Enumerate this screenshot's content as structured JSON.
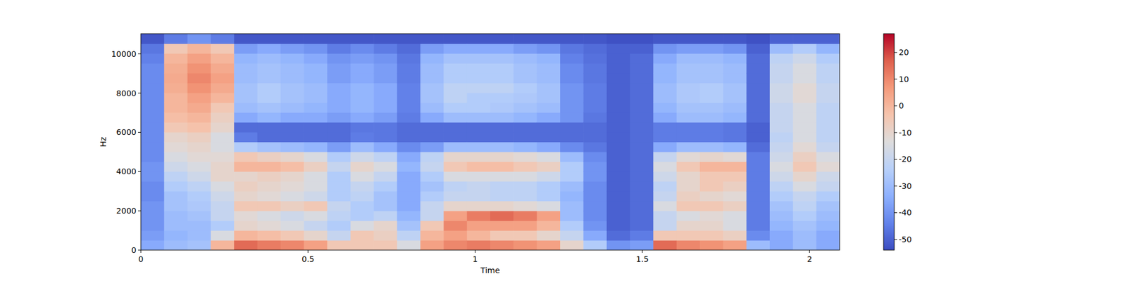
{
  "chart_data": {
    "type": "heatmap",
    "x_label": "Time",
    "y_label": "Hz",
    "xlim": [
      0,
      2.09
    ],
    "ylim": [
      0,
      11025
    ],
    "xticks": [
      0,
      0.5,
      1,
      1.5,
      2
    ],
    "yticks": [
      0,
      2000,
      4000,
      6000,
      8000,
      10000
    ],
    "clim": [
      -54,
      27
    ],
    "cticks": [
      -50,
      -40,
      -30,
      -20,
      -10,
      0,
      10,
      20
    ],
    "z": [
      [
        -35,
        -38,
        -40,
        -40,
        -40,
        -42,
        -42,
        -40,
        -40,
        -42,
        -42,
        -42,
        -42,
        -42,
        -42,
        -42,
        -42,
        -42,
        -42,
        -44,
        -46,
        -52
      ],
      [
        -30,
        -32,
        -30,
        -30,
        -28,
        -28,
        -25,
        -22,
        -18,
        -15,
        -12,
        -10,
        -5,
        -2,
        0,
        0,
        2,
        3,
        2,
        0,
        -5,
        -45
      ],
      [
        -28,
        -30,
        -30,
        -28,
        -26,
        -25,
        -22,
        -18,
        -15,
        -12,
        -10,
        -8,
        -3,
        0,
        3,
        5,
        8,
        10,
        8,
        5,
        0,
        -40
      ],
      [
        0,
        -15,
        -25,
        -20,
        -20,
        -18,
        -15,
        -10,
        -10,
        -12,
        -15,
        -15,
        -10,
        -8,
        -5,
        0,
        3,
        5,
        3,
        0,
        -5,
        -45
      ],
      [
        15,
        0,
        -10,
        -12,
        -5,
        -10,
        -8,
        -10,
        0,
        -5,
        -25,
        -45,
        -48,
        -35,
        -30,
        -28,
        -28,
        -30,
        -30,
        -32,
        -38,
        -52
      ],
      [
        12,
        -2,
        -12,
        -15,
        -5,
        -12,
        -10,
        -8,
        0,
        -8,
        -28,
        -48,
        -48,
        -32,
        -28,
        -25,
        -25,
        -28,
        -28,
        -30,
        -35,
        -52
      ],
      [
        10,
        -5,
        -15,
        -18,
        -8,
        -15,
        -12,
        -10,
        -2,
        -10,
        -30,
        -48,
        -48,
        -35,
        -30,
        -28,
        -28,
        -30,
        -30,
        -32,
        -38,
        -52
      ],
      [
        5,
        -10,
        -20,
        -15,
        -5,
        -18,
        -15,
        -15,
        -8,
        -15,
        -32,
        -48,
        -48,
        -35,
        -32,
        -30,
        -30,
        -32,
        -32,
        -35,
        -40,
        -52
      ],
      [
        -5,
        -20,
        -25,
        -22,
        -20,
        -25,
        -25,
        -25,
        -20,
        -25,
        -38,
        -48,
        -48,
        -38,
        -35,
        -35,
        -35,
        -38,
        -38,
        -40,
        -45,
        -52
      ],
      [
        -5,
        -5,
        -15,
        -25,
        -25,
        -22,
        -20,
        -15,
        -10,
        -18,
        -30,
        -45,
        -46,
        -35,
        -32,
        -32,
        -32,
        -35,
        -35,
        -38,
        -42,
        -52
      ],
      [
        -5,
        -8,
        -10,
        -22,
        -28,
        -28,
        -25,
        -20,
        -15,
        -22,
        -35,
        -46,
        -46,
        -38,
        -35,
        -35,
        -35,
        -38,
        -38,
        -40,
        -45,
        -52
      ],
      [
        -15,
        -22,
        -28,
        -32,
        -35,
        -35,
        -35,
        -35,
        -32,
        -35,
        -42,
        -48,
        -48,
        -45,
        -44,
        -44,
        -44,
        -45,
        -45,
        -46,
        -48,
        -52
      ],
      [
        5,
        0,
        -5,
        -20,
        -20,
        -25,
        -28,
        -25,
        -20,
        -22,
        -38,
        -48,
        -48,
        -35,
        -30,
        -28,
        -28,
        -30,
        -30,
        -32,
        -38,
        -52
      ],
      [
        10,
        5,
        10,
        5,
        -10,
        -20,
        -22,
        -15,
        -5,
        -10,
        -30,
        -48,
        -48,
        -30,
        -25,
        -22,
        -22,
        -25,
        -25,
        -28,
        -35,
        -52
      ],
      [
        12,
        0,
        5,
        12,
        -10,
        -20,
        -20,
        -15,
        -2,
        -10,
        -30,
        -48,
        -48,
        -30,
        -25,
        -25,
        -22,
        -25,
        -25,
        -28,
        -35,
        -52
      ],
      [
        10,
        -5,
        5,
        15,
        -10,
        -22,
        -22,
        -15,
        -2,
        -10,
        -30,
        -48,
        -48,
        -30,
        -26,
        -25,
        -22,
        -25,
        -25,
        -28,
        -35,
        -52
      ],
      [
        8,
        -5,
        5,
        12,
        -12,
        -22,
        -22,
        -15,
        -5,
        -12,
        -32,
        -48,
        -48,
        -32,
        -28,
        -26,
        -25,
        -28,
        -28,
        -30,
        -38,
        -52
      ],
      [
        5,
        -10,
        0,
        5,
        -15,
        -25,
        -25,
        -18,
        -8,
        -15,
        -35,
        -48,
        -48,
        -35,
        -30,
        -28,
        -28,
        -30,
        -30,
        -32,
        -40,
        -52
      ],
      [
        -10,
        -20,
        -25,
        -30,
        -30,
        -32,
        -30,
        -25,
        -25,
        -30,
        -42,
        -48,
        -48,
        -40,
        -40,
        -40,
        -40,
        -42,
        -42,
        -44,
        -46,
        -52
      ],
      [
        -25,
        -35,
        -40,
        -42,
        -42,
        -42,
        -42,
        -40,
        -40,
        -42,
        -46,
        -48,
        -48,
        -46,
        -45,
        -45,
        -45,
        -46,
        -46,
        -47,
        -48,
        -52
      ],
      [
        -40,
        -48,
        -50,
        -50,
        -50,
        -50,
        -50,
        -50,
        -50,
        -50,
        -50,
        -50,
        -50,
        -50,
        -50,
        -50,
        -50,
        -50,
        -50,
        -50,
        -50,
        -53
      ],
      [
        -38,
        -45,
        -48,
        -48,
        -48,
        -48,
        -48,
        -48,
        -48,
        -48,
        -48,
        -48,
        -48,
        -48,
        -48,
        -48,
        -48,
        -48,
        -48,
        -48,
        -50,
        -53
      ],
      [
        15,
        -5,
        -20,
        -20,
        -15,
        -20,
        -22,
        -18,
        -15,
        -20,
        -35,
        -45,
        -45,
        -35,
        -32,
        -30,
        -30,
        -32,
        -32,
        -35,
        -40,
        -52
      ],
      [
        10,
        -5,
        -10,
        -15,
        -5,
        -8,
        -10,
        -10,
        -5,
        -12,
        -30,
        -45,
        -45,
        -30,
        -28,
        -26,
        -26,
        -28,
        -28,
        -30,
        -38,
        -52
      ],
      [
        8,
        -5,
        -10,
        -12,
        -5,
        -10,
        -5,
        -5,
        0,
        -10,
        -30,
        -45,
        -45,
        -30,
        -28,
        -25,
        -25,
        -28,
        -28,
        -30,
        -38,
        -52
      ],
      [
        5,
        -8,
        -15,
        -15,
        -8,
        -12,
        -8,
        -5,
        0,
        -12,
        -32,
        -46,
        -46,
        -32,
        -30,
        -28,
        -28,
        -30,
        -30,
        -32,
        -40,
        -52
      ],
      [
        -30,
        -42,
        -45,
        -45,
        -45,
        -45,
        -45,
        -45,
        -45,
        -45,
        -48,
        -50,
        -50,
        -48,
        -48,
        -48,
        -48,
        -48,
        -48,
        -48,
        -50,
        -53
      ],
      [
        -35,
        -35,
        -32,
        -30,
        -28,
        -25,
        -22,
        -18,
        -15,
        -18,
        -20,
        -22,
        -20,
        -20,
        -20,
        -18,
        -18,
        -20,
        -20,
        -22,
        -30,
        -50
      ],
      [
        -30,
        -30,
        -28,
        -25,
        -22,
        -20,
        -15,
        -10,
        -5,
        -8,
        -12,
        -15,
        -15,
        -15,
        -15,
        -12,
        -12,
        -15,
        -15,
        -18,
        -25,
        -50
      ],
      [
        -35,
        -35,
        -32,
        -30,
        -28,
        -25,
        -20,
        -18,
        -12,
        -15,
        -20,
        -22,
        -22,
        -22,
        -22,
        -20,
        -20,
        -22,
        -22,
        -25,
        -32,
        -50
      ]
    ]
  }
}
